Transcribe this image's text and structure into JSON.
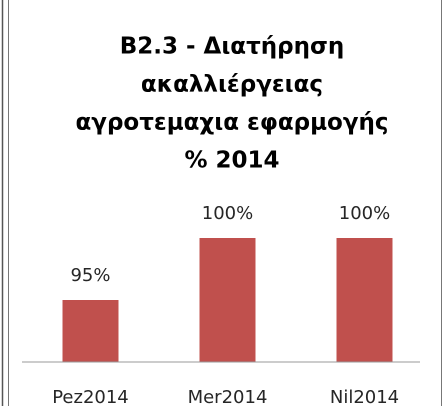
{
  "chart_data": {
    "type": "bar",
    "title": [
      "B2.3 - Διατήρηση",
      "ακαλλιέργειας",
      "αγροτεμαχια εφαρμογής",
      "% 2014"
    ],
    "categories": [
      "Pez2014",
      "Mer2014",
      "Nil2014"
    ],
    "values": [
      95,
      100,
      100
    ],
    "value_labels": [
      "95%",
      "100%",
      "100%"
    ],
    "color": "#c0504d",
    "ylim": [
      90,
      100
    ]
  }
}
